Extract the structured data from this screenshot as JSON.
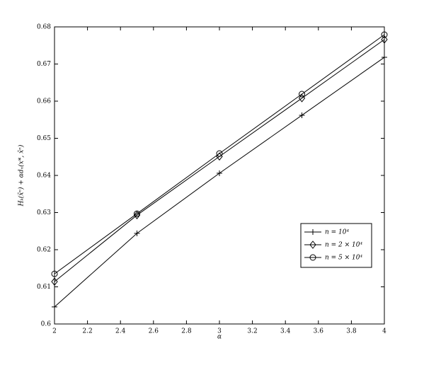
{
  "chart_data": {
    "type": "line",
    "x_label": "α",
    "y_label": "Hₖ(x̄ⁿ) + αdₙ(x*, x̄ⁿ)",
    "x": [
      2,
      2.5,
      3,
      3.5,
      4
    ],
    "series": [
      {
        "name": "n = 10⁴",
        "color": "#000000",
        "marker": "plus",
        "values": [
          0.6046,
          0.6244,
          0.6406,
          0.6562,
          0.6718
        ]
      },
      {
        "name": "n = 2 × 10⁴",
        "color": "#000000",
        "marker": "diamond",
        "values": [
          0.6114,
          0.6293,
          0.6451,
          0.6608,
          0.6766
        ]
      },
      {
        "name": "n = 5 × 10⁴",
        "color": "#000000",
        "marker": "circle",
        "values": [
          0.6135,
          0.6297,
          0.6459,
          0.6619,
          0.6779
        ]
      }
    ],
    "xlim": [
      2,
      4
    ],
    "xticks": [
      2,
      2.2,
      2.4,
      2.6,
      2.8,
      3,
      3.2,
      3.4,
      3.6,
      3.8,
      4
    ],
    "ylim": [
      0.6,
      0.68
    ],
    "yticks": [
      0.6,
      0.61,
      0.62,
      0.63,
      0.64,
      0.65,
      0.66,
      0.67,
      0.68
    ],
    "grid": false,
    "legend": "lower right"
  }
}
